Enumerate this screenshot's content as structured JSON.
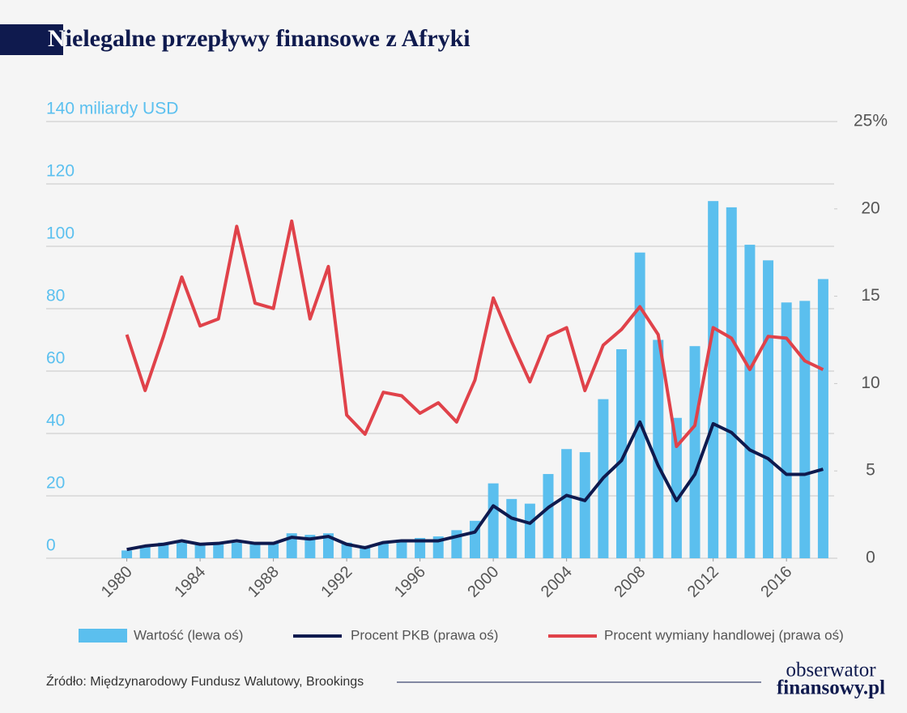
{
  "chart_data": {
    "type": "bar-line",
    "title": "Nielegalne przepływy finansowe z Afryki",
    "x": [
      1980,
      1981,
      1982,
      1983,
      1984,
      1985,
      1986,
      1987,
      1988,
      1989,
      1990,
      1991,
      1992,
      1993,
      1994,
      1995,
      1996,
      1997,
      1998,
      1999,
      2000,
      2001,
      2002,
      2003,
      2004,
      2005,
      2006,
      2007,
      2008,
      2009,
      2010,
      2011,
      2012,
      2013,
      2014,
      2015,
      2016,
      2017,
      2018
    ],
    "xlim": [
      1975.6,
      2018.6
    ],
    "xticks": [
      1980,
      1984,
      1988,
      1992,
      1996,
      2000,
      2004,
      2008,
      2012,
      2016
    ],
    "ylim": [
      0,
      140
    ],
    "yticks": [
      0,
      20,
      40,
      60,
      80,
      100,
      120,
      {
        "value": 140,
        "label": "140 miliardy USD"
      }
    ],
    "y2lim": [
      0,
      25
    ],
    "y2ticks": [
      0,
      5,
      10,
      15,
      20,
      {
        "value": 25,
        "label": "25%"
      }
    ],
    "grid": true,
    "series": [
      {
        "name": "Wartość (lewa oś)",
        "type": "bar",
        "color": "#5bbfee",
        "axis": "y",
        "values": [
          2.5,
          4,
          5,
          5,
          4.5,
          5,
          5,
          5,
          5,
          8,
          7.5,
          8,
          5,
          4,
          5,
          6,
          6.5,
          7,
          9,
          12,
          24,
          19,
          17.5,
          27,
          35,
          34,
          51,
          67,
          98,
          70,
          45,
          68,
          114.5,
          112.5,
          100.5,
          95.5,
          82,
          82.5,
          89.5
        ]
      },
      {
        "name": "Procent PKB (prawa oś)",
        "type": "line",
        "color": "#0f1a4e",
        "axis": "y2",
        "values": [
          0.5,
          0.7,
          0.8,
          1.0,
          0.8,
          0.85,
          1.0,
          0.85,
          0.85,
          1.2,
          1.1,
          1.25,
          0.8,
          0.6,
          0.9,
          1.0,
          1.0,
          1.0,
          1.25,
          1.5,
          3.0,
          2.3,
          2.0,
          2.9,
          3.6,
          3.3,
          4.6,
          5.6,
          7.8,
          5.3,
          3.3,
          4.8,
          7.7,
          7.2,
          6.2,
          5.7,
          4.8,
          4.8,
          5.1
        ]
      },
      {
        "name": "Procent wymiany handlowej (prawa oś)",
        "type": "line",
        "color": "#e0424a",
        "axis": "y2",
        "values": [
          12.8,
          9.6,
          12.7,
          16.1,
          13.3,
          13.7,
          19.0,
          14.6,
          14.3,
          19.3,
          13.7,
          16.7,
          8.2,
          7.1,
          9.5,
          9.3,
          8.3,
          8.9,
          7.8,
          10.2,
          14.9,
          12.4,
          10.1,
          12.7,
          13.2,
          9.6,
          12.2,
          13.1,
          14.4,
          12.8,
          6.4,
          7.6,
          13.2,
          12.6,
          10.8,
          12.7,
          12.6,
          11.3,
          10.8
        ]
      }
    ],
    "source": "Źródło: Międzynarodowy Fundusz Walutowy, Brookings"
  },
  "logo": [
    "obserwator",
    "finansowy.pl"
  ]
}
